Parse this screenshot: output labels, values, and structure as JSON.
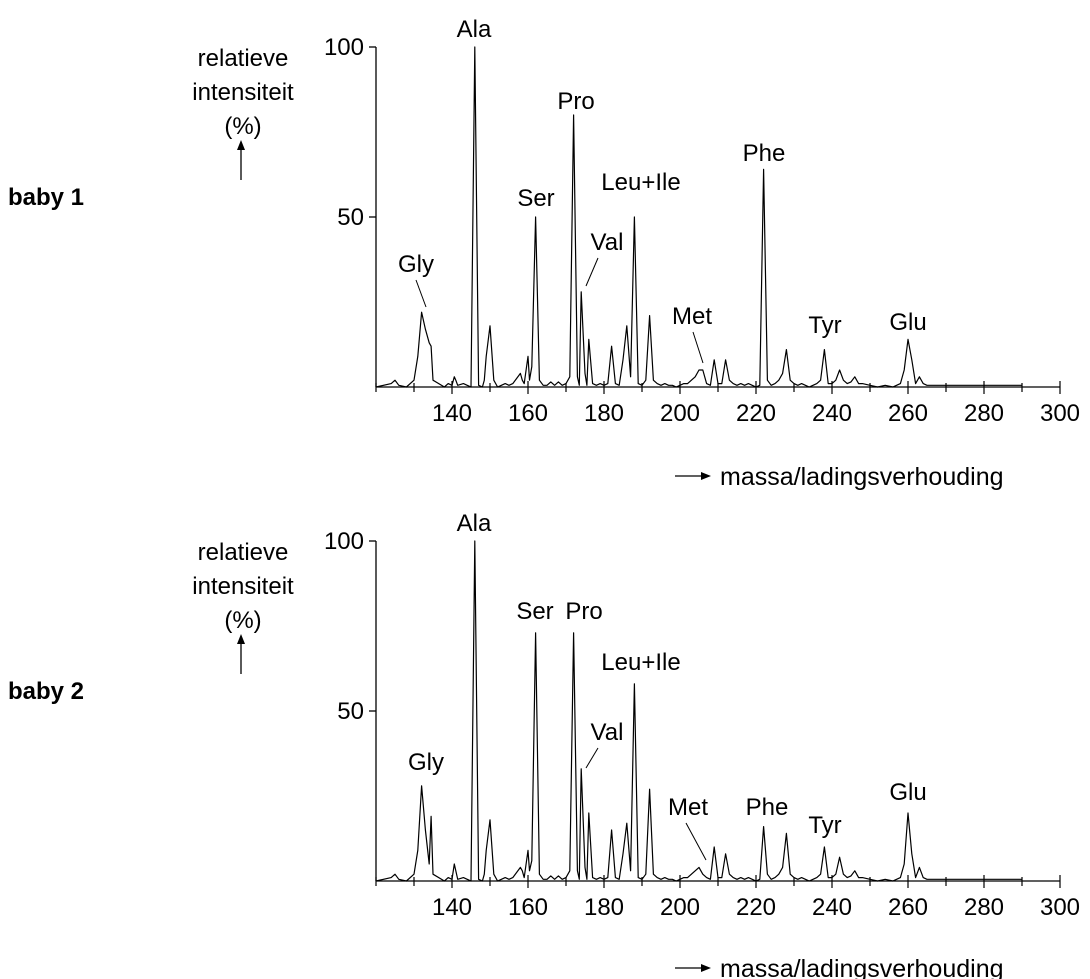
{
  "colors": {
    "background": "#ffffff",
    "line": "#000000"
  },
  "chart_data": [
    {
      "type": "line",
      "row_label": "baby 1",
      "ylabel_lines": [
        "relatieve",
        "intensiteit",
        "(%)"
      ],
      "xlabel": "massa/ladingsverhouding",
      "xlim": [
        120,
        300
      ],
      "ylim": [
        0,
        100
      ],
      "xticks": [
        140,
        160,
        180,
        200,
        220,
        240,
        260,
        280,
        300
      ],
      "yticks": [
        50,
        100
      ],
      "grid": false,
      "series": [
        {
          "x": [
            120,
            124,
            125,
            126,
            128,
            130,
            131,
            132,
            133,
            134,
            134.5,
            135,
            138,
            139,
            140,
            140.6,
            141,
            141.5,
            143,
            144,
            145,
            146,
            147,
            148,
            148.5,
            149,
            150,
            151,
            152,
            153,
            154,
            155,
            156,
            157,
            158,
            158.5,
            159,
            160,
            160.4,
            161,
            162,
            163,
            164,
            165,
            166,
            167,
            168,
            169,
            170,
            171,
            172,
            173,
            173.5,
            174,
            175,
            175.5,
            176,
            177,
            178,
            179,
            180,
            181,
            182,
            183,
            184,
            185,
            186,
            187,
            188,
            189,
            190,
            191,
            192,
            193,
            194,
            195,
            196,
            197,
            198,
            199,
            200,
            201,
            202,
            203,
            204,
            205,
            206,
            207,
            208,
            209,
            210,
            211,
            212,
            213,
            214,
            215,
            216,
            217,
            218,
            219,
            220,
            221,
            222,
            223,
            224,
            225,
            226,
            227,
            228,
            229,
            230,
            231,
            232,
            233,
            234,
            235,
            236,
            237,
            238,
            239,
            240,
            241,
            242,
            243,
            244,
            245,
            246,
            247,
            248,
            250,
            252,
            254,
            256,
            257,
            258,
            259,
            260,
            261,
            262,
            263,
            264,
            265,
            267,
            270,
            280,
            290
          ],
          "y": [
            0,
            1,
            2,
            0.5,
            0,
            2,
            9,
            22,
            17,
            13,
            12,
            2,
            0,
            1,
            0.5,
            3,
            2,
            0.5,
            1,
            0.5,
            0,
            100,
            0.5,
            0,
            2,
            9,
            18,
            2,
            0,
            0.5,
            1,
            0.5,
            1,
            2.5,
            4,
            2,
            1,
            9,
            2,
            6,
            50,
            2,
            0.5,
            0.5,
            1.5,
            0.5,
            1.5,
            0.5,
            1,
            3,
            80,
            3,
            0.5,
            28,
            4,
            0.5,
            14,
            1,
            0.5,
            1,
            0.5,
            1,
            12,
            1,
            0.5,
            8,
            18,
            3,
            50,
            1,
            0.5,
            2,
            21,
            2,
            1,
            0.5,
            1,
            0.5,
            0.5,
            0,
            0.5,
            1,
            1,
            2,
            3,
            5,
            5,
            1,
            0.5,
            8,
            1,
            1,
            8,
            2,
            1,
            0.5,
            1,
            0.5,
            1,
            0.5,
            0,
            0.5,
            64,
            2,
            0.5,
            1,
            2,
            4,
            11,
            2,
            1,
            0.5,
            1,
            0.5,
            0,
            0.5,
            1,
            2,
            11,
            1,
            1,
            2,
            5,
            2,
            1,
            1.5,
            3,
            1,
            1,
            0.5,
            0,
            0.5,
            0,
            0.5,
            1,
            5,
            14,
            8,
            1,
            3,
            1,
            0.5,
            0.5,
            0.5,
            0.5,
            0.5
          ]
        }
      ],
      "annotations": [
        {
          "text": "Ala",
          "x": 146,
          "y": 100
        },
        {
          "text": "Pro",
          "x": 172,
          "y": 80
        },
        {
          "text": "Ser",
          "x": 162,
          "y": 50
        },
        {
          "text": "Leu+Ile",
          "x": 188,
          "y": 50
        },
        {
          "text": "Val",
          "x": 174,
          "y": 28
        },
        {
          "text": "Phe",
          "x": 222,
          "y": 64
        },
        {
          "text": "Gly",
          "x": 132,
          "y": 22
        },
        {
          "text": "Met",
          "x": 206,
          "y": 5
        },
        {
          "text": "Tyr",
          "x": 238,
          "y": 11
        },
        {
          "text": "Glu",
          "x": 260,
          "y": 14
        }
      ]
    },
    {
      "type": "line",
      "row_label": "baby 2",
      "ylabel_lines": [
        "relatieve",
        "intensiteit",
        "(%)"
      ],
      "xlabel": "massa/ladingsverhouding",
      "xlim": [
        120,
        300
      ],
      "ylim": [
        0,
        100
      ],
      "xticks": [
        140,
        160,
        180,
        200,
        220,
        240,
        260,
        280,
        300
      ],
      "yticks": [
        50,
        100
      ],
      "grid": false,
      "series": [
        {
          "x": [
            120,
            124,
            125,
            126,
            128,
            130,
            131,
            132,
            133,
            134,
            134.5,
            135,
            138,
            139,
            140,
            140.6,
            141,
            141.5,
            143,
            144,
            145,
            146,
            147,
            148,
            148.5,
            149,
            150,
            151,
            152,
            153,
            154,
            155,
            156,
            157,
            158,
            158.5,
            159,
            160,
            160.4,
            161,
            162,
            163,
            164,
            165,
            166,
            167,
            168,
            169,
            170,
            171,
            172,
            173,
            173.5,
            174,
            175,
            175.5,
            176,
            177,
            178,
            179,
            180,
            181,
            182,
            183,
            184,
            185,
            186,
            187,
            188,
            189,
            190,
            191,
            192,
            193,
            194,
            195,
            196,
            197,
            198,
            199,
            200,
            201,
            202,
            203,
            204,
            205,
            206,
            207,
            208,
            209,
            210,
            211,
            212,
            213,
            214,
            215,
            216,
            217,
            218,
            219,
            220,
            221,
            222,
            223,
            224,
            225,
            226,
            227,
            228,
            229,
            230,
            231,
            232,
            233,
            234,
            235,
            236,
            237,
            238,
            239,
            240,
            241,
            242,
            243,
            244,
            245,
            246,
            247,
            248,
            250,
            252,
            254,
            256,
            257,
            258,
            259,
            260,
            261,
            262,
            263,
            264,
            265,
            267,
            270,
            280,
            290
          ],
          "y": [
            0,
            1,
            2,
            0.5,
            0,
            2,
            9,
            28,
            15,
            5,
            19,
            2,
            0,
            1,
            0.5,
            5,
            3,
            0.5,
            1,
            0.5,
            0,
            100,
            0.5,
            0,
            2,
            9,
            18,
            2,
            0,
            0.5,
            1,
            0.5,
            1,
            2.5,
            4,
            3,
            1,
            9,
            3,
            6,
            73,
            2,
            0.5,
            0.5,
            1.5,
            0.5,
            1.5,
            0.5,
            1,
            3,
            73,
            3,
            0.5,
            33,
            4,
            0.5,
            20,
            1,
            0.5,
            1,
            0.5,
            1,
            15,
            1,
            0.5,
            8,
            17,
            3,
            58,
            1,
            0.5,
            2,
            27,
            2,
            1,
            0.5,
            1,
            0.5,
            0.5,
            0,
            0.5,
            1,
            1,
            2,
            3,
            4,
            2,
            1,
            0.5,
            10,
            1,
            1,
            8,
            2,
            1,
            0.5,
            1,
            0.5,
            1,
            0.5,
            0,
            0.5,
            16,
            2,
            0.5,
            1,
            2,
            4,
            14,
            2,
            1,
            0.5,
            1,
            0.5,
            0,
            0.5,
            1,
            2,
            10,
            1,
            1,
            2,
            7,
            2,
            1,
            1.5,
            3,
            1,
            1,
            0.5,
            0,
            0.5,
            0,
            0.5,
            1,
            5,
            20,
            8,
            1,
            4,
            1,
            0.5,
            0.5,
            0.5,
            0.5,
            0.5
          ]
        }
      ],
      "annotations": [
        {
          "text": "Ala",
          "x": 146,
          "y": 100
        },
        {
          "text": "Ser",
          "x": 162,
          "y": 73
        },
        {
          "text": "Pro",
          "x": 172,
          "y": 73
        },
        {
          "text": "Leu+Ile",
          "x": 188,
          "y": 58
        },
        {
          "text": "Val",
          "x": 174,
          "y": 33
        },
        {
          "text": "Gly",
          "x": 132,
          "y": 28
        },
        {
          "text": "Met",
          "x": 206,
          "y": 4
        },
        {
          "text": "Phe",
          "x": 222,
          "y": 16
        },
        {
          "text": "Tyr",
          "x": 238,
          "y": 10
        },
        {
          "text": "Glu",
          "x": 260,
          "y": 20
        }
      ]
    }
  ]
}
